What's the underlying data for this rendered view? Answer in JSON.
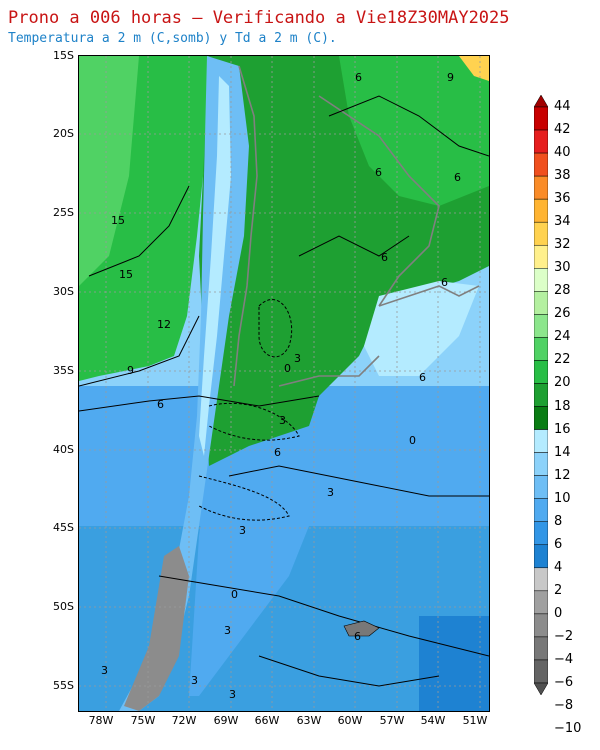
{
  "header": {
    "title": "Prono a 006 horas — Verificando a Vie18Z30MAY2025",
    "subtitle": "Temperatura a 2 m (C,somb) y Td a 2 m (C)."
  },
  "axes": {
    "lat_labels": [
      "15S",
      "20S",
      "25S",
      "30S",
      "35S",
      "40S",
      "45S",
      "50S",
      "55S"
    ],
    "lon_labels": [
      "78W",
      "75W",
      "72W",
      "69W",
      "66W",
      "63W",
      "60W",
      "57W",
      "54W",
      "51W"
    ]
  },
  "colorbar": {
    "levels": [
      "44",
      "42",
      "40",
      "38",
      "36",
      "34",
      "32",
      "30",
      "28",
      "26",
      "24",
      "22",
      "20",
      "18",
      "16",
      "14",
      "12",
      "10",
      "8",
      "6",
      "4",
      "2",
      "0",
      "−2",
      "−4",
      "−6",
      "−8",
      "−10"
    ],
    "colors": [
      "#a00000",
      "#c80000",
      "#e61e1e",
      "#f0501e",
      "#fa8c28",
      "#ffb432",
      "#ffd250",
      "#fff08c",
      "#dcffc8",
      "#b4f0a0",
      "#8ce68c",
      "#50d264",
      "#28be46",
      "#1ea032",
      "#0a7d14",
      "#b4ebff",
      "#8cd2fa",
      "#6ebef5",
      "#50aaf0",
      "#3296e6",
      "#1e82d2",
      "#c8c8c8",
      "#a0a0a0",
      "#8c8c8c",
      "#787878",
      "#646464",
      "#505050"
    ]
  },
  "contour_labels": [
    "6",
    "9",
    "6",
    "6",
    "15",
    "15",
    "12",
    "9",
    "6",
    "3",
    "0",
    "6",
    "3",
    "6",
    "0",
    "6",
    "3",
    "6",
    "3",
    "0",
    "3",
    "6",
    "3",
    "3",
    "3"
  ],
  "colors": {
    "title": "#c81414",
    "subtitle": "#1e82c8",
    "ocean": "#3a9fe0",
    "land_green": "#1ea032",
    "land_light_green": "#50d264"
  }
}
